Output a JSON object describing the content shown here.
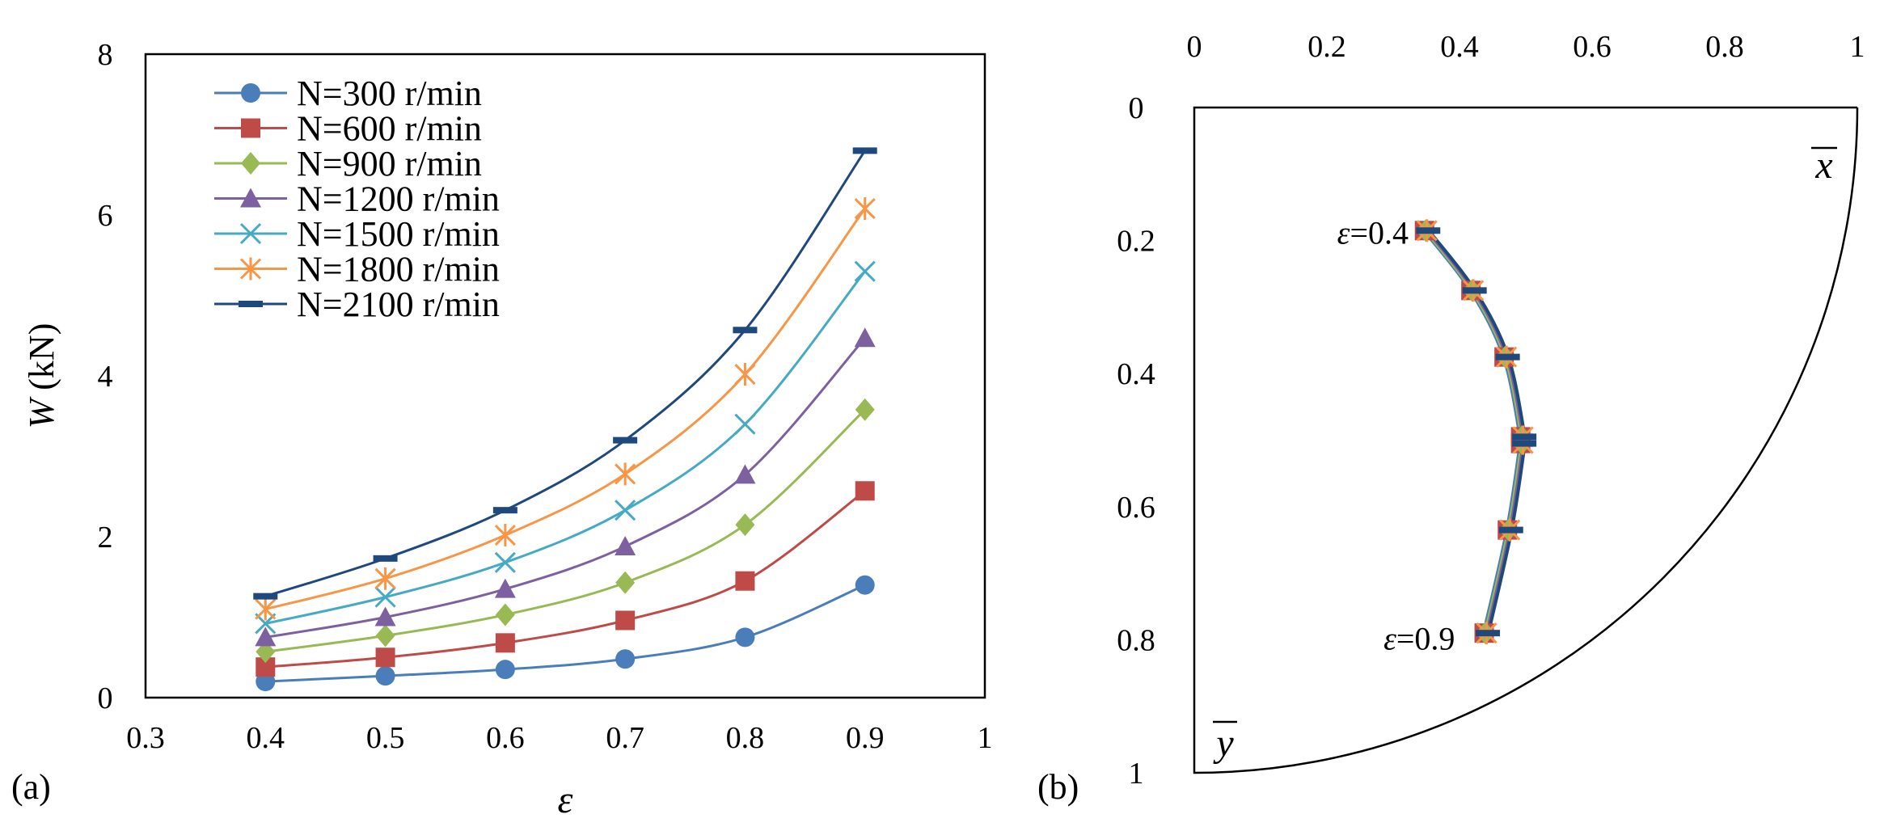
{
  "chart_data": [
    {
      "type": "line",
      "panel_label": "(a)",
      "ylabel_symbol": "W",
      "ylabel_unit": " (kN)",
      "xlabel": "ε",
      "xlim": [
        0.3,
        1
      ],
      "ylim": [
        0,
        8
      ],
      "xticks": [
        "0.3",
        "0.4",
        "0.5",
        "0.6",
        "0.7",
        "0.8",
        "0.9",
        "1"
      ],
      "yticks": [
        "0",
        "2",
        "4",
        "6",
        "8"
      ],
      "x": [
        0.4,
        0.5,
        0.6,
        0.7,
        0.8,
        0.9
      ],
      "legend_position": "top-left",
      "series": [
        {
          "name": "N=300 r/min",
          "color": "#4a7ebb",
          "marker": "circle",
          "values": [
            0.2,
            0.27,
            0.35,
            0.48,
            0.75,
            1.4
          ]
        },
        {
          "name": "N=600 r/min",
          "color": "#be4b48",
          "marker": "square",
          "values": [
            0.38,
            0.5,
            0.68,
            0.96,
            1.45,
            2.57
          ]
        },
        {
          "name": "N=900 r/min",
          "color": "#98b954",
          "marker": "diamond",
          "values": [
            0.57,
            0.77,
            1.03,
            1.43,
            2.15,
            3.58
          ]
        },
        {
          "name": "N=1200 r/min",
          "color": "#7d60a0",
          "marker": "triangle",
          "values": [
            0.75,
            1.0,
            1.35,
            1.88,
            2.77,
            4.47
          ]
        },
        {
          "name": "N=1500 r/min",
          "color": "#46aac5",
          "marker": "x",
          "values": [
            0.92,
            1.25,
            1.68,
            2.33,
            3.4,
            5.3
          ]
        },
        {
          "name": "N=1800 r/min",
          "color": "#f79646",
          "marker": "star",
          "values": [
            1.1,
            1.48,
            2.02,
            2.78,
            4.02,
            6.08
          ]
        },
        {
          "name": "N=2100 r/min",
          "color": "#1f497d",
          "marker": "dash",
          "values": [
            1.26,
            1.73,
            2.33,
            3.2,
            4.57,
            6.8
          ]
        }
      ]
    },
    {
      "type": "line",
      "panel_label": "(b)",
      "xlabel": "x",
      "ylabel": "y",
      "xlim": [
        0,
        1
      ],
      "ylim": [
        0,
        1
      ],
      "xticks": [
        "0",
        "0.2",
        "0.4",
        "0.6",
        "0.8",
        "1"
      ],
      "yticks": [
        "0",
        "0.2",
        "0.4",
        "0.6",
        "0.8",
        "1"
      ],
      "boundary": "quarter circle of radius 1",
      "locus_points": [
        {
          "x": 0.35,
          "y": 0.185
        },
        {
          "x": 0.42,
          "y": 0.275
        },
        {
          "x": 0.47,
          "y": 0.375
        },
        {
          "x": 0.495,
          "y": 0.495
        },
        {
          "x": 0.495,
          "y": 0.505
        },
        {
          "x": 0.475,
          "y": 0.635
        },
        {
          "x": 0.44,
          "y": 0.79
        }
      ],
      "marker_sets": [
        {
          "color": "#be4b48",
          "marker": "square"
        },
        {
          "color": "#98b954",
          "marker": "diamond"
        },
        {
          "color": "#f79646",
          "marker": "star"
        },
        {
          "color": "#1f497d",
          "marker": "dash"
        }
      ],
      "line_colors": [
        "#4a7ebb",
        "#98b954",
        "#7d60a0",
        "#1f497d"
      ],
      "annotations": [
        {
          "symbol": "ε",
          "value": "=0.4",
          "at": {
            "x": 0.35,
            "y": 0.185
          }
        },
        {
          "symbol": "ε",
          "value": "=0.9",
          "at": {
            "x": 0.42,
            "y": 0.795
          }
        }
      ]
    }
  ]
}
